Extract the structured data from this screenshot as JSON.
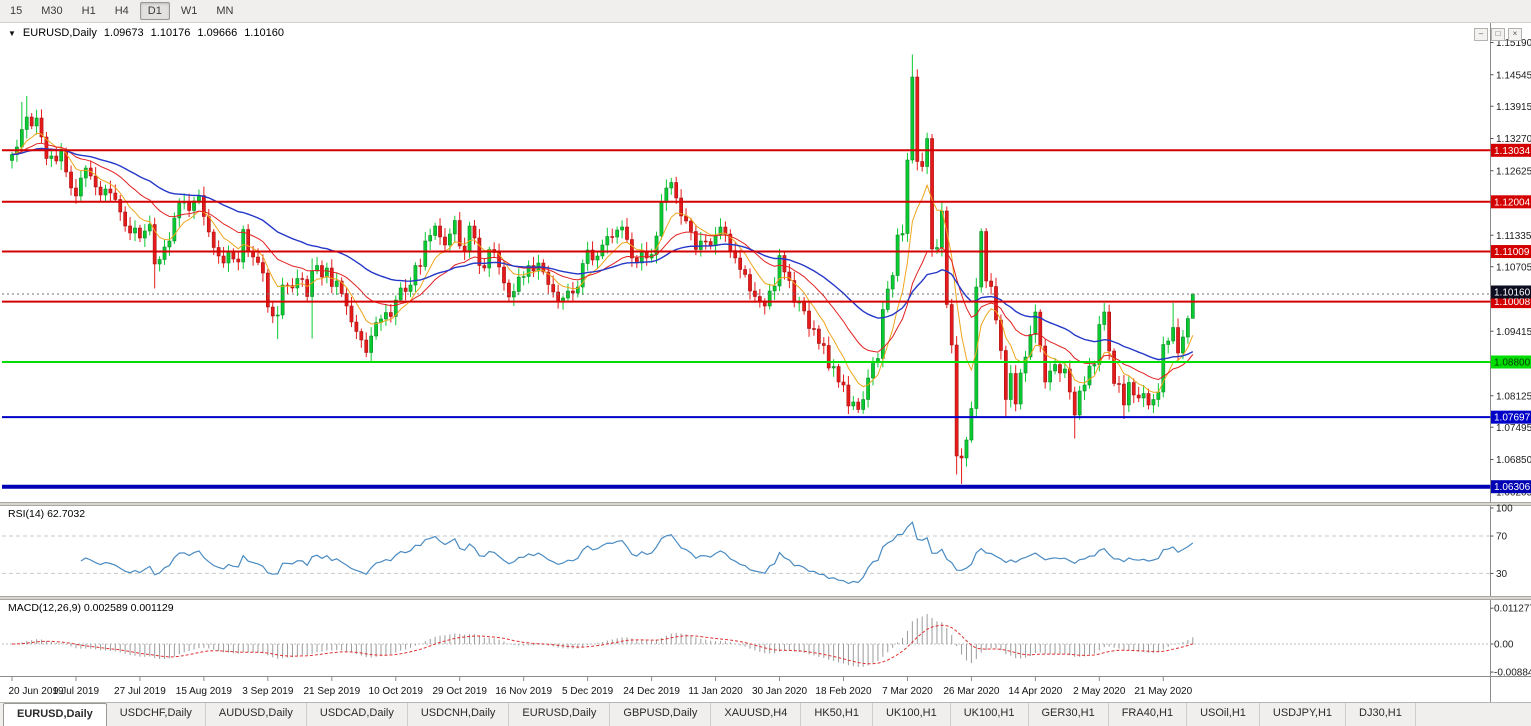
{
  "toolbar": {
    "timeframes": [
      "15",
      "M30",
      "H1",
      "H4",
      "D1",
      "W1",
      "MN"
    ],
    "active": "D1"
  },
  "icons": {
    "dropdown": "▼"
  },
  "window_controls": [
    {
      "name": "minimize",
      "glyph": "–"
    },
    {
      "name": "maximize",
      "glyph": "□"
    },
    {
      "name": "close",
      "glyph": "×"
    }
  ],
  "chart_title": {
    "symbol": "EURUSD,Daily",
    "open": "1.09673",
    "high": "1.10176",
    "low": "1.09666",
    "close": "1.10160"
  },
  "panes": {
    "rsi_label": "RSI(14) 62.7032",
    "macd_label": "MACD(12,26,9) 0.002589 0.001129"
  },
  "tabs": {
    "active_index": 0,
    "items": [
      "EURUSD,Daily",
      "USDCHF,Daily",
      "AUDUSD,Daily",
      "USDCAD,Daily",
      "USDCNH,Daily",
      "EURUSD,Daily",
      "GBPUSD,Daily",
      "XAUUSD,H4",
      "HK50,H1",
      "UK100,H1",
      "UK100,H1",
      "GER30,H1",
      "FRA40,H1",
      "USOil,H1",
      "USDJPY,H1",
      "DJ30,H1"
    ]
  },
  "chart_data": {
    "type": "candlestick",
    "symbol": "EURUSD",
    "timeframe": "Daily",
    "last_candle": {
      "o": 1.09673,
      "h": 1.10176,
      "l": 1.09666,
      "c": 1.1016
    },
    "y_axis": {
      "top": 1.156,
      "bottom": 1.06,
      "tick_labels": [
        "1.15190",
        "1.14545",
        "1.13915",
        "1.13270",
        "1.12625",
        "1.11995",
        "1.11335",
        "1.10705",
        "1.10060",
        "1.09415",
        "1.08785",
        "1.08125",
        "1.07495",
        "1.06850",
        "1.06205"
      ]
    },
    "x_axis": {
      "labels": [
        "20 Jun 2019",
        "9 Jul 2019",
        "27 Jul 2019",
        "15 Aug 2019",
        "3 Sep 2019",
        "21 Sep 2019",
        "10 Oct 2019",
        "29 Oct 2019",
        "16 Nov 2019",
        "5 Dec 2019",
        "24 Dec 2019",
        "11 Jan 2020",
        "30 Jan 2020",
        "18 Feb 2020",
        "7 Mar 2020",
        "26 Mar 2020",
        "14 Apr 2020",
        "2 May 2020",
        "21 May 2020"
      ],
      "label_candle_indices": [
        0,
        13,
        26,
        39,
        52,
        65,
        78,
        91,
        104,
        117,
        130,
        143,
        156,
        169,
        182,
        195,
        208,
        221,
        234
      ]
    },
    "closes": [
      1.1295,
      1.131,
      1.1345,
      1.137,
      1.1352,
      1.1368,
      1.133,
      1.1287,
      1.1292,
      1.1282,
      1.1302,
      1.126,
      1.1228,
      1.1212,
      1.1248,
      1.1268,
      1.1252,
      1.123,
      1.1214,
      1.1226,
      1.1218,
      1.1205,
      1.118,
      1.1152,
      1.1138,
      1.1148,
      1.1128,
      1.1142,
      1.1155,
      1.1076,
      1.1085,
      1.111,
      1.1122,
      1.1168,
      1.1198,
      1.12,
      1.1183,
      1.1202,
      1.1213,
      1.1171,
      1.114,
      1.1109,
      1.1092,
      1.1078,
      1.11,
      1.1086,
      1.108,
      1.1145,
      1.1102,
      1.109,
      1.1079,
      1.1058,
      1.099,
      1.0972,
      1.0974,
      1.1034,
      1.1033,
      1.1028,
      1.1047,
      1.1045,
      1.1011,
      1.1062,
      1.1073,
      1.105,
      1.1068,
      1.1031,
      1.1042,
      1.1017,
      1.0992,
      1.096,
      1.0941,
      1.0924,
      1.0899,
      1.0932,
      1.0959,
      1.0966,
      1.0979,
      1.0971,
      1.1004,
      1.1028,
      1.1021,
      1.1034,
      1.1073,
      1.1071,
      1.1122,
      1.1133,
      1.1152,
      1.113,
      1.1114,
      1.1136,
      1.1163,
      1.1112,
      1.1101,
      1.1152,
      1.1128,
      1.1073,
      1.1068,
      1.1105,
      1.1099,
      1.107,
      1.1038,
      1.101,
      1.1021,
      1.105,
      1.1051,
      1.1073,
      1.1062,
      1.1078,
      1.106,
      1.1035,
      1.102,
      1.1001,
      1.1008,
      1.1022,
      1.1018,
      1.103,
      1.1077,
      1.1104,
      1.1084,
      1.1092,
      1.1114,
      1.1131,
      1.113,
      1.1144,
      1.115,
      1.1125,
      1.1088,
      1.1078,
      1.1102,
      1.1088,
      1.1095,
      1.1132,
      1.1199,
      1.1228,
      1.1239,
      1.1208,
      1.1172,
      1.1162,
      1.1141,
      1.1105,
      1.1122,
      1.1121,
      1.1113,
      1.1134,
      1.115,
      1.1136,
      1.1103,
      1.1088,
      1.1065,
      1.1055,
      1.1022,
      1.1011,
      1.1002,
      1.0992,
      1.1022,
      1.1032,
      1.1093,
      1.106,
      1.1043,
      1.0999,
      1.1,
      1.0982,
      1.0947,
      1.0946,
      1.0917,
      1.0913,
      1.0868,
      1.0871,
      1.084,
      1.0834,
      1.0792,
      1.08,
      1.0785,
      1.0805,
      1.0848,
      1.088,
      1.0887,
      1.0985,
      1.1026,
      1.1053,
      1.1134,
      1.1137,
      1.1284,
      1.145,
      1.1281,
      1.1271,
      1.1327,
      1.1106,
      1.1109,
      1.1182,
      1.0995,
      1.0914,
      1.0692,
      1.0688,
      1.0724,
      1.0787,
      1.103,
      1.1141,
      1.1042,
      1.1031,
      1.0964,
      1.0903,
      1.0805,
      1.0857,
      1.0796,
      1.0858,
      1.089,
      1.0935,
      1.098,
      1.0912,
      1.084,
      1.0862,
      1.0875,
      1.0858,
      1.0866,
      1.082,
      1.0774,
      1.0822,
      1.0834,
      1.0872,
      1.0875,
      1.0955,
      1.098,
      1.0902,
      1.0837,
      1.0836,
      1.0794,
      1.0839,
      1.0814,
      1.0808,
      1.0817,
      1.0794,
      1.0805,
      1.082,
      1.0915,
      1.0922,
      1.0949,
      1.0898,
      1.093,
      1.0967,
      1.1016
    ],
    "wick_overrides": {
      "2": {
        "h": 1.14
      },
      "3": {
        "h": 1.1412
      },
      "29": {
        "l": 1.1027
      },
      "47": {
        "h": 1.1153
      },
      "54": {
        "l": 1.0926
      },
      "61": {
        "l": 1.0927,
        "h": 1.1087
      },
      "73": {
        "l": 1.0879
      },
      "172": {
        "l": 1.0778
      },
      "183": {
        "h": 1.1495
      },
      "192": {
        "l": 1.0655
      },
      "193": {
        "l": 1.0636
      },
      "197": {
        "h": 1.1147
      },
      "202": {
        "l": 1.0769
      },
      "216": {
        "l": 1.0727
      },
      "221": {
        "h": 1.0972
      },
      "226": {
        "l": 1.0766
      },
      "236": {
        "h": 1.0998
      },
      "240": {
        "o": 1.09673,
        "h": 1.10176,
        "l": 1.09666,
        "c": 1.1016
      }
    },
    "levels": [
      {
        "value": 1.13034,
        "label": "1.13034",
        "color": "#d40000",
        "thickness": 2,
        "text": "#ffffff"
      },
      {
        "value": 1.12004,
        "label": "1.12004",
        "color": "#d40000",
        "thickness": 2,
        "text": "#ffffff"
      },
      {
        "value": 1.11009,
        "label": "1.11009",
        "color": "#d40000",
        "thickness": 2,
        "text": "#ffffff"
      },
      {
        "value": 1.10008,
        "label": "1.10008",
        "color": "#d40000",
        "thickness": 2,
        "text": "#ffffff"
      },
      {
        "value": 1.088,
        "label": "1.08800",
        "color": "#00dd00",
        "thickness": 2,
        "text": "#083808"
      },
      {
        "value": 1.07697,
        "label": "1.07697",
        "color": "#0000c8",
        "thickness": 2,
        "text": "#ffffff"
      },
      {
        "value": 1.06306,
        "label": "1.06306",
        "color": "#0000b4",
        "thickness": 4,
        "text": "#ffffff"
      }
    ],
    "current_price": {
      "value": 1.1016,
      "label": "1.10160",
      "bg": "#0d0d21",
      "text": "#ffffff"
    },
    "moving_averages": [
      {
        "period": 8,
        "color": "#efa51c",
        "width": 1
      },
      {
        "period": 21,
        "color": "#e32020",
        "width": 1
      },
      {
        "period": 45,
        "color": "#2438c8",
        "width": 1.4
      }
    ],
    "candle_colors": {
      "up": "#0aca32",
      "up_stroke": "#067d1f",
      "down": "#e51b1b",
      "down_stroke": "#9c0d0d"
    },
    "rsi": {
      "period": 14,
      "last": 62.7032,
      "level_lines": [
        70,
        30
      ],
      "axis_labels": [
        "100",
        "70",
        "30"
      ],
      "axis_values": [
        100,
        70,
        30
      ],
      "color": "#4a8bc2"
    },
    "macd": {
      "fast": 12,
      "slow": 26,
      "signal": 9,
      "last": 0.002589,
      "last_signal": 0.001129,
      "axis_labels": [
        "0.011277",
        "0.00",
        "-0.008844"
      ],
      "axis_values": [
        0.011277,
        0,
        -0.008844
      ],
      "histogram_color": "#9b9b9b",
      "signal_color": "#e03030"
    }
  }
}
